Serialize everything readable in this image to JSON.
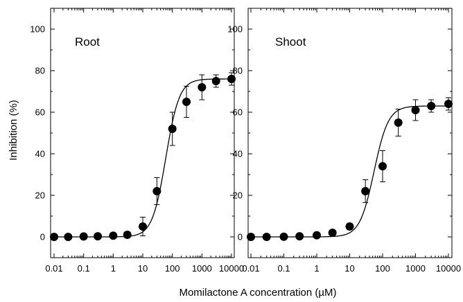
{
  "chart_data": {
    "type": "scatter",
    "xlabel": "Momilactone A concentration (µM)",
    "ylabel": "Inhibition  (%)",
    "x_scale": "log",
    "xlim": [
      0.01,
      10000
    ],
    "ylim": [
      -10,
      110
    ],
    "x_ticks": [
      0.01,
      0.1,
      1,
      10,
      100,
      1000,
      10000
    ],
    "x_tick_labels": [
      "0.01",
      "0.1",
      "1",
      "10",
      "100",
      "1000",
      "10000"
    ],
    "y_ticks": [
      0,
      20,
      40,
      60,
      80,
      100
    ],
    "y_tick_labels": [
      "0",
      "20",
      "40",
      "60",
      "80",
      "100"
    ],
    "grid": false,
    "panels": [
      {
        "label": "Root",
        "x": [
          0.01,
          0.03,
          0.1,
          0.3,
          1,
          3,
          10,
          30,
          100,
          300,
          1000,
          3000,
          10000
        ],
        "y": [
          0,
          0,
          0.2,
          0.3,
          0.6,
          1,
          5,
          22,
          52,
          65,
          72,
          75,
          76
        ],
        "error": [
          0,
          0,
          0,
          0,
          0.5,
          1.5,
          4.5,
          6.5,
          8,
          7.5,
          6,
          3,
          3
        ],
        "fit": {
          "bottom": 0,
          "top": 76,
          "ec50": 60,
          "hill": 1.9
        }
      },
      {
        "label": "Shoot",
        "x": [
          0.01,
          0.03,
          0.1,
          0.3,
          1,
          3,
          10,
          30,
          100,
          300,
          1000,
          3000,
          10000
        ],
        "y": [
          0,
          0,
          0.1,
          0.3,
          0.8,
          2,
          5,
          22,
          34,
          55,
          61,
          63,
          64
        ],
        "error": [
          0,
          0,
          0,
          0,
          0.4,
          0.8,
          1.5,
          5.5,
          7.5,
          6.5,
          5,
          3,
          3
        ],
        "fit": {
          "bottom": 0,
          "top": 63,
          "ec50": 55,
          "hill": 2.0
        }
      }
    ]
  }
}
